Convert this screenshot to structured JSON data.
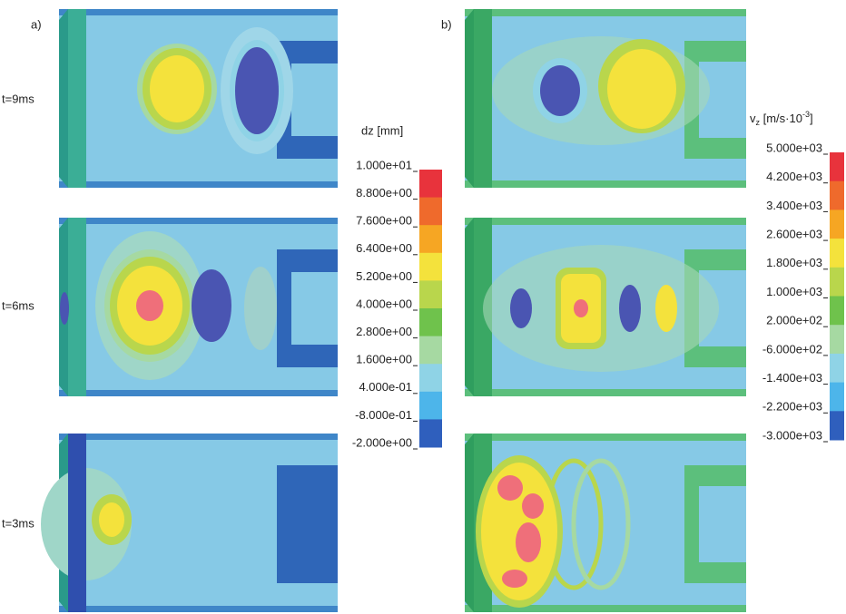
{
  "figure": {
    "panel_labels": [
      "a)",
      "b)"
    ],
    "time_labels": [
      "t=9ms",
      "t=6ms",
      "t=3ms"
    ],
    "colorbars": [
      {
        "title": "dz [mm]",
        "labels": [
          "1.000e+01",
          "8.800e+00",
          "7.600e+00",
          "6.400e+00",
          "5.200e+00",
          "4.000e+00",
          "2.800e+00",
          "1.600e+00",
          "4.000e-01",
          "-8.000e-01",
          "-2.000e+00"
        ],
        "colors": [
          "#e8333c",
          "#ef6a2c",
          "#f6a623",
          "#f4e23c",
          "#b9d64c",
          "#6fc24c",
          "#a6d9a2",
          "#8fd3e6",
          "#4db5ea",
          "#2f5fbd"
        ]
      },
      {
        "title": {
          "base": "v",
          "sub": "z",
          "mid": " [m/s·10",
          "sup": "-3",
          "end": "]"
        },
        "labels": [
          "5.000e+03",
          "4.200e+03",
          "3.400e+03",
          "2.600e+03",
          "1.800e+03",
          "1.000e+03",
          "2.000e+02",
          "-6.000e+02",
          "-1.400e+03",
          "-2.200e+03",
          "-3.000e+03"
        ],
        "colors": [
          "#e8333c",
          "#ef6a2c",
          "#f6a623",
          "#f4e23c",
          "#b9d64c",
          "#6fc24c",
          "#a6d9a2",
          "#8fd3e6",
          "#4db5ea",
          "#2f5fbd"
        ]
      }
    ]
  }
}
